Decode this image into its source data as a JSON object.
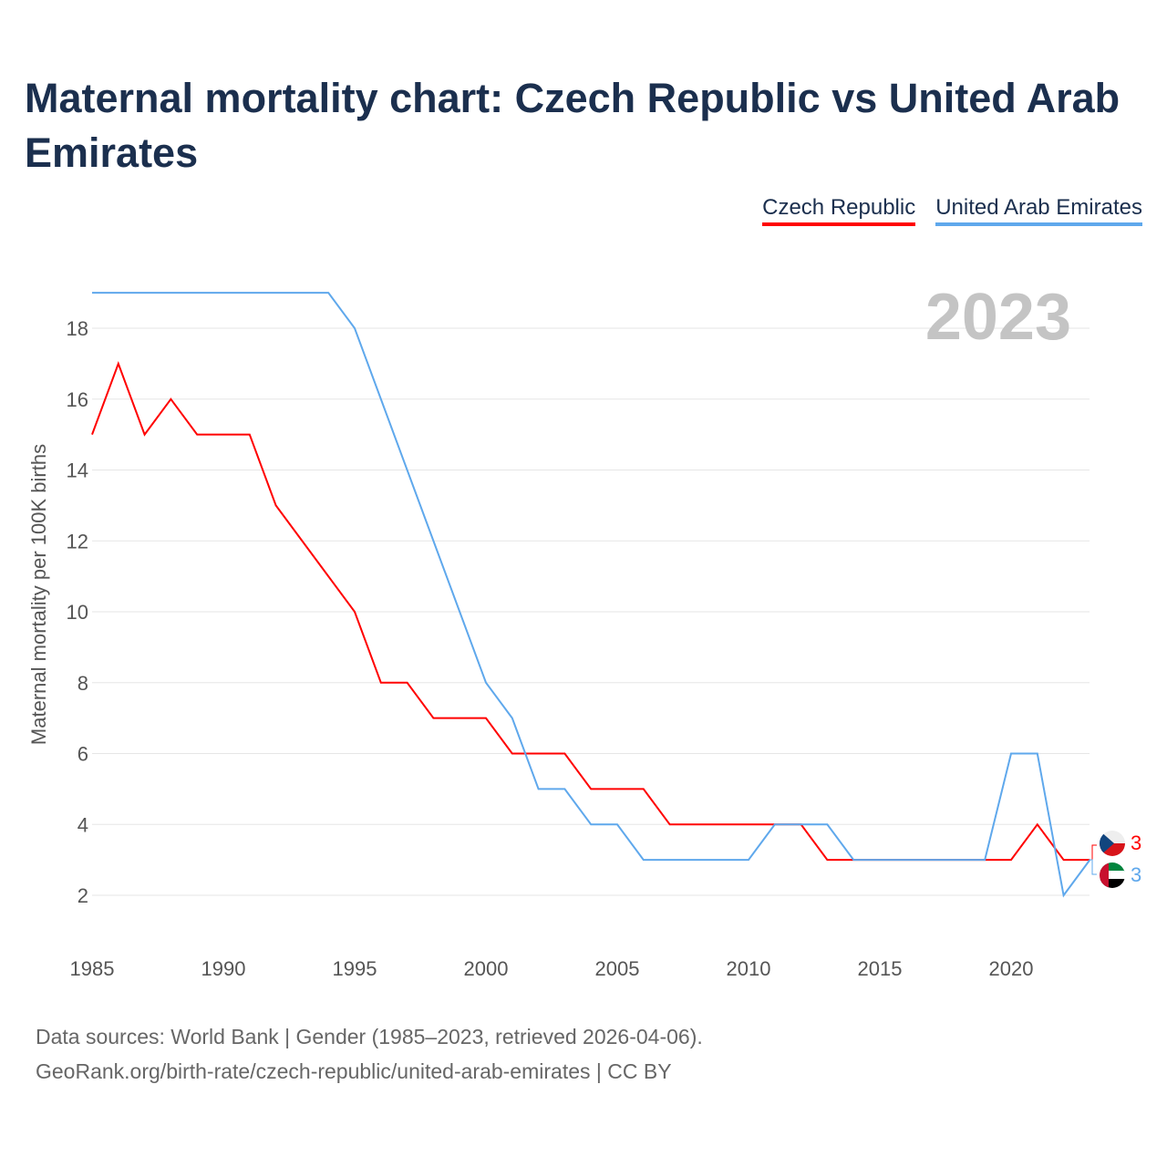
{
  "title": "Maternal mortality chart: Czech Republic vs United Arab Emirates",
  "footer": {
    "line1": "Data sources: World Bank | Gender (1985–2023, retrieved 2026-04-06).",
    "line2": "GeoRank.org/birth-rate/czech-republic/united-arab-emirates | CC BY"
  },
  "chart_data": {
    "type": "line",
    "title": "Maternal mortality chart: Czech Republic vs United Arab Emirates",
    "xlabel": "",
    "ylabel": "Maternal mortality per 100K births",
    "year_label": "2023",
    "x": [
      1985,
      1986,
      1987,
      1988,
      1989,
      1990,
      1991,
      1992,
      1993,
      1994,
      1995,
      1996,
      1997,
      1998,
      1999,
      2000,
      2001,
      2002,
      2003,
      2004,
      2005,
      2006,
      2007,
      2008,
      2009,
      2010,
      2011,
      2012,
      2013,
      2014,
      2015,
      2016,
      2017,
      2018,
      2019,
      2020,
      2021,
      2022,
      2023
    ],
    "xticks": [
      1985,
      1990,
      1995,
      2000,
      2005,
      2010,
      2015,
      2020
    ],
    "yticks": [
      2,
      4,
      6,
      8,
      10,
      12,
      14,
      16,
      18
    ],
    "xlim": [
      1985,
      2023
    ],
    "ylim": [
      1,
      19.5
    ],
    "grid": true,
    "legend_position": "top-right",
    "series": [
      {
        "name": "Czech Republic",
        "color": "#ff0000",
        "end_label": "3",
        "values": [
          15,
          17,
          15,
          16,
          15,
          15,
          15,
          13,
          12,
          11,
          10,
          8,
          8,
          7,
          7,
          7,
          6,
          6,
          6,
          5,
          5,
          5,
          4,
          4,
          4,
          4,
          4,
          4,
          3,
          3,
          3,
          3,
          3,
          3,
          3,
          3,
          4,
          3,
          3
        ]
      },
      {
        "name": "United Arab Emirates",
        "color": "#5fa8ec",
        "end_label": "3",
        "values": [
          19,
          19,
          19,
          19,
          19,
          19,
          19,
          19,
          19,
          19,
          18,
          16,
          14,
          12,
          10,
          8,
          7,
          5,
          5,
          4,
          4,
          3,
          3,
          3,
          3,
          3,
          4,
          4,
          4,
          3,
          3,
          3,
          3,
          3,
          3,
          6,
          6,
          2,
          3
        ]
      }
    ]
  }
}
